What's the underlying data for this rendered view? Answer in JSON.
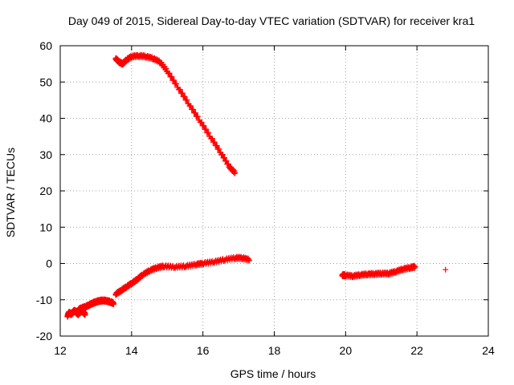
{
  "chart_data": {
    "type": "scatter",
    "title": "Day 049 of 2015, Sidereal Day-to-day VTEC variation (SDTVAR) for receiver kra1",
    "xlabel": "GPS time / hours",
    "ylabel": "SDTVAR / TECUs",
    "xlim": [
      12,
      24
    ],
    "ylim": [
      -20,
      60
    ],
    "xticks": [
      12,
      14,
      16,
      18,
      20,
      22,
      24
    ],
    "yticks": [
      -20,
      -10,
      0,
      10,
      20,
      30,
      40,
      50,
      60
    ],
    "grid": true,
    "marker": "+",
    "color": "#ff0000",
    "series": [
      {
        "name": "segment-1",
        "x": [
          12.2,
          12.25,
          12.3,
          12.35,
          12.4,
          12.45,
          12.5,
          12.55,
          12.6,
          12.65,
          12.7
        ],
        "y": [
          -14.5,
          -13.5,
          -14.0,
          -13.5,
          -13.0,
          -13.5,
          -14.0,
          -13.5,
          -13.0,
          -13.5,
          -14.0
        ]
      },
      {
        "name": "segment-2",
        "x": [
          12.5,
          12.6,
          12.7,
          12.8,
          12.9,
          13.0,
          13.1,
          13.2,
          13.3,
          13.4,
          13.5
        ],
        "y": [
          -12.8,
          -12.3,
          -12.0,
          -11.5,
          -11.0,
          -10.6,
          -10.3,
          -10.2,
          -10.3,
          -10.6,
          -11.0
        ]
      },
      {
        "name": "segment-3",
        "x": [
          13.55,
          13.7,
          13.85,
          14.0,
          14.15,
          14.3,
          14.5,
          14.7,
          14.9,
          15.2,
          15.5,
          15.8,
          16.0,
          16.3,
          16.6,
          16.9,
          17.1,
          17.3
        ],
        "y": [
          -8.5,
          -7.5,
          -6.5,
          -5.5,
          -4.5,
          -3.2,
          -2.0,
          -1.2,
          -0.8,
          -1.0,
          -0.8,
          -0.3,
          0.0,
          0.4,
          1.0,
          1.5,
          1.5,
          1.0
        ]
      },
      {
        "name": "segment-4",
        "x": [
          13.55,
          13.65,
          13.75,
          13.85,
          14.0,
          14.2,
          14.4,
          14.6,
          14.8,
          15.0,
          15.3,
          15.6,
          15.9,
          16.2,
          16.5,
          16.75,
          16.9
        ],
        "y": [
          56.5,
          55.5,
          55.0,
          56.0,
          57.0,
          57.2,
          57.0,
          56.5,
          55.5,
          53.0,
          48.5,
          44.0,
          39.5,
          35.0,
          30.5,
          26.5,
          25.0
        ]
      },
      {
        "name": "segment-5",
        "x": [
          19.9,
          20.0,
          20.2,
          20.4,
          20.6,
          20.8,
          21.0,
          21.2,
          21.4,
          21.6,
          21.8,
          21.95
        ],
        "y": [
          -3.2,
          -3.3,
          -3.5,
          -3.2,
          -3.0,
          -2.9,
          -2.8,
          -2.8,
          -2.3,
          -1.6,
          -1.2,
          -0.9
        ]
      },
      {
        "name": "segment-6",
        "x": [
          22.8
        ],
        "y": [
          -1.7
        ]
      }
    ]
  }
}
